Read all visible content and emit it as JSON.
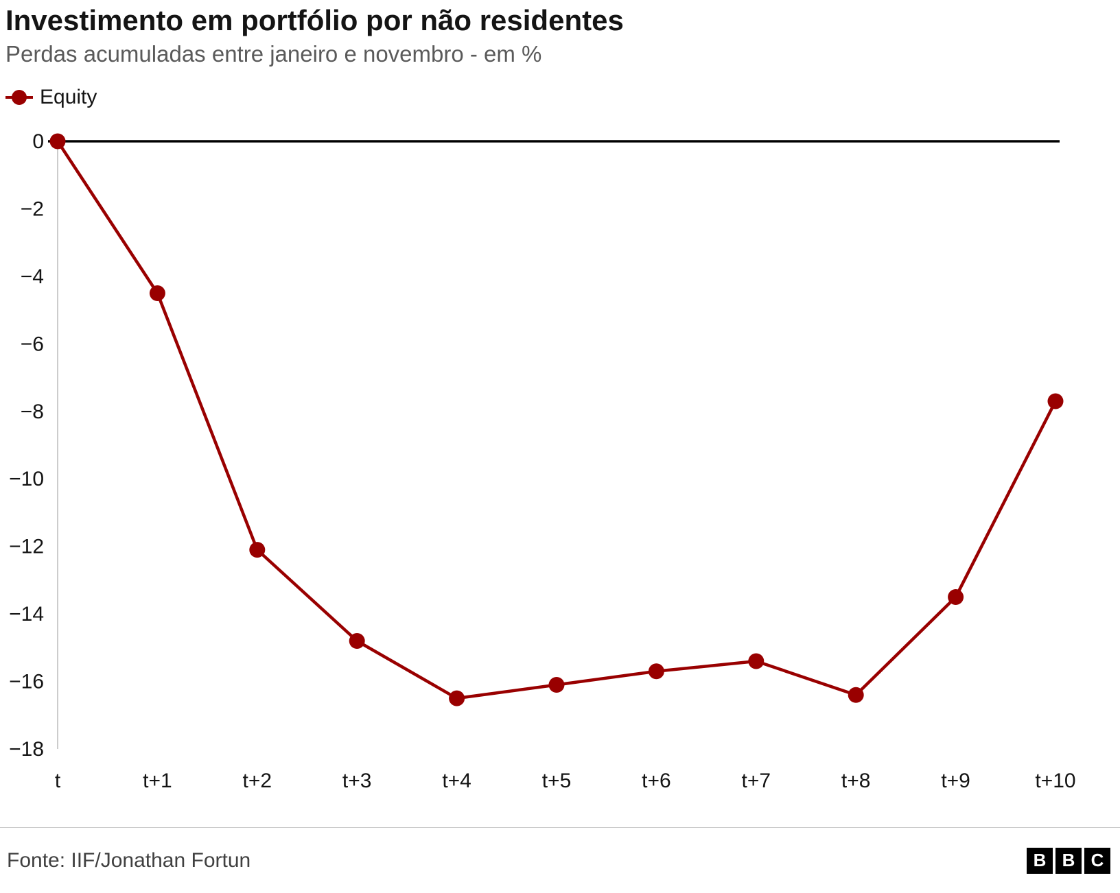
{
  "header": {
    "title": "Investimento em portfólio por não residentes",
    "subtitle": "Perdas acumuladas entre janeiro e novembro - em %"
  },
  "legend": {
    "label": "Equity",
    "color": "#990000"
  },
  "chart_data": {
    "type": "line",
    "title": "Investimento em portfólio por não residentes",
    "subtitle": "Perdas acumuladas entre janeiro e novembro - em %",
    "categories": [
      "t",
      "t+1",
      "t+2",
      "t+3",
      "t+4",
      "t+5",
      "t+6",
      "t+7",
      "t+8",
      "t+9",
      "t+10"
    ],
    "series": [
      {
        "name": "Equity",
        "color": "#990000",
        "values": [
          0,
          -4.5,
          -12.1,
          -14.8,
          -16.5,
          -16.1,
          -15.7,
          -15.4,
          -16.4,
          -13.5,
          -7.7
        ]
      }
    ],
    "xlabel": "",
    "ylabel": "",
    "ylim": [
      -18,
      0
    ],
    "yticks": [
      0,
      -2,
      -4,
      -6,
      -8,
      -10,
      -12,
      -14,
      -16,
      -18
    ],
    "grid": false,
    "zero_line_color": "#000000",
    "axis_line_color": "#cccccc",
    "tick_label_color": "#141414",
    "legend_position": "top-left"
  },
  "footer": {
    "source": "Fonte: IIF/Jonathan Fortun",
    "logo_letters": [
      "B",
      "B",
      "C"
    ]
  }
}
